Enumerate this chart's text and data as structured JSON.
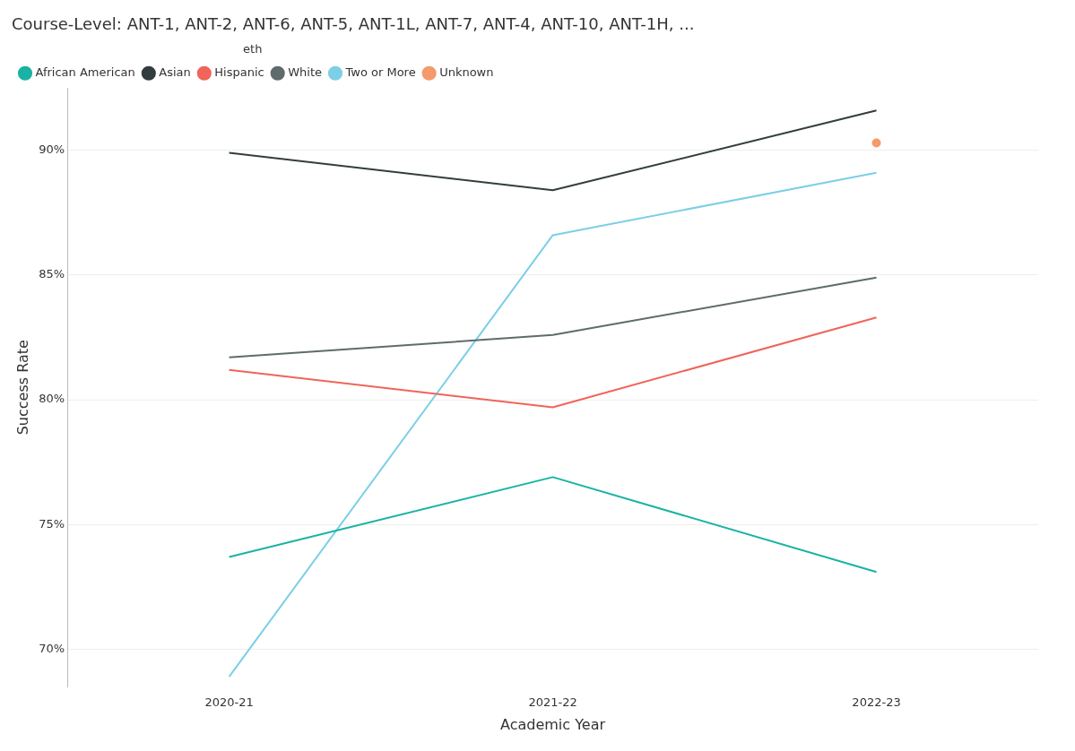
{
  "chart_data": {
    "type": "line",
    "title": "Course-Level: ANT-1, ANT-2, ANT-6, ANT-5, ANT-1L, ANT-7, ANT-4, ANT-10, ANT-1H, ...",
    "xlabel": "Academic Year",
    "ylabel": "Success Rate",
    "legend_title": "eth",
    "legend": "top left",
    "grid": "y",
    "marker": "none",
    "line_style": "solid",
    "categories": [
      "2020-21",
      "2021-22",
      "2022-23"
    ],
    "ylim": [
      68.5,
      92.5
    ],
    "yticks": [
      {
        "value": 70,
        "label": "70%"
      },
      {
        "value": 75,
        "label": "75%"
      },
      {
        "value": 80,
        "label": "80%"
      },
      {
        "value": 85,
        "label": "85%"
      },
      {
        "value": 90,
        "label": "90%"
      }
    ],
    "series": [
      {
        "name": "African American",
        "color": "#1ab3a3",
        "values": [
          73.7,
          76.9,
          73.1
        ]
      },
      {
        "name": "Asian",
        "color": "#333d3f",
        "values": [
          89.9,
          88.4,
          91.6
        ]
      },
      {
        "name": "Hispanic",
        "color": "#f0645a",
        "values": [
          81.2,
          79.7,
          83.3
        ]
      },
      {
        "name": "White",
        "color": "#5f6b6d",
        "values": [
          81.7,
          82.6,
          84.9
        ]
      },
      {
        "name": "Two or More",
        "color": "#7ccfe6",
        "values": [
          68.9,
          86.6,
          89.1
        ]
      },
      {
        "name": "Unknown",
        "color": "#f59a6b",
        "values": [
          null,
          null,
          90.3
        ],
        "marker": "circle"
      }
    ]
  }
}
